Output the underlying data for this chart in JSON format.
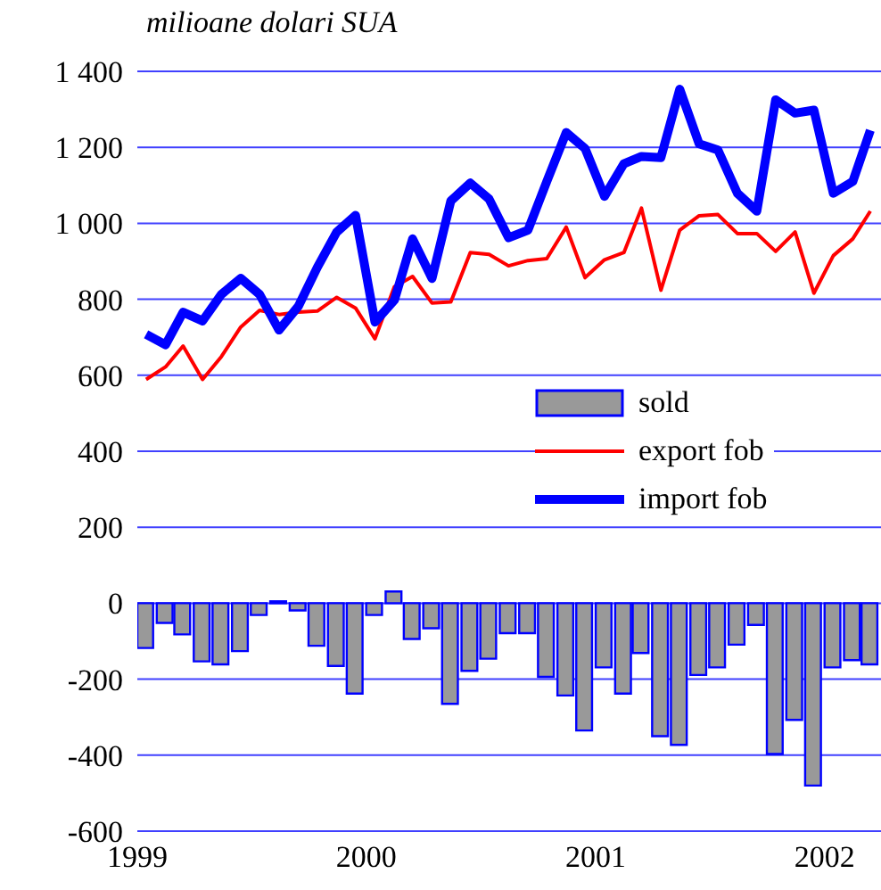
{
  "chart_data": {
    "type": "line",
    "title": "milioane dolari SUA",
    "x": [
      "1999-01-15",
      "1999-02-15",
      "1999-03-15",
      "1999-04-15",
      "1999-05-15",
      "1999-06-15",
      "1999-07-15",
      "1999-08-15",
      "1999-09-15",
      "1999-10-15",
      "1999-11-15",
      "1999-12-15",
      "2000-01-15",
      "2000-02-15",
      "2000-03-15",
      "2000-04-15",
      "2000-05-15",
      "2000-06-15",
      "2000-07-15",
      "2000-08-15",
      "2000-09-15",
      "2000-10-15",
      "2000-11-15",
      "2000-12-15",
      "2001-01-15",
      "2001-02-15",
      "2001-03-15",
      "2001-04-15",
      "2001-05-15",
      "2001-06-15",
      "2001-07-15",
      "2001-08-15",
      "2001-09-15",
      "2001-10-15",
      "2001-11-15",
      "2001-12-15",
      "2002-01-15",
      "2002-02-15",
      "2002-03-15"
    ],
    "series": [
      {
        "name": "sold",
        "type": "bar",
        "color": "#999999",
        "values": [
          -118,
          -52,
          -82,
          -153,
          -161,
          -126,
          -31,
          5,
          -19,
          -112,
          -165,
          -238,
          -31,
          31,
          -94,
          -66,
          -265,
          -178,
          -146,
          -79,
          -79,
          -194,
          -243,
          -335,
          -169,
          -238,
          -131,
          -350,
          -373,
          -189,
          -169,
          -109,
          -57,
          -397,
          -307,
          -480,
          -169,
          -150,
          -161
        ]
      },
      {
        "name": "export fob",
        "color": "#ff0000",
        "values": [
          589,
          622,
          677,
          589,
          649,
          727,
          771,
          760,
          766,
          769,
          805,
          777,
          696,
          833,
          860,
          790,
          793,
          923,
          918,
          888,
          902,
          907,
          990,
          857,
          904,
          923,
          1040,
          824,
          982,
          1020,
          1023,
          973,
          973,
          926,
          977,
          816,
          915,
          959,
          1032
        ]
      },
      {
        "name": "import fob",
        "color": "#0000ff",
        "values": [
          708,
          680,
          766,
          743,
          813,
          855,
          813,
          719,
          782,
          884,
          977,
          1021,
          740,
          798,
          959,
          855,
          1059,
          1106,
          1064,
          962,
          982,
          1110,
          1239,
          1197,
          1071,
          1157,
          1176,
          1173,
          1353,
          1209,
          1193,
          1079,
          1032,
          1325,
          1290,
          1298,
          1079,
          1110,
          1245
        ]
      }
    ],
    "xlim": [
      "1999-01-01",
      "2002-04-01"
    ],
    "xticks": [
      {
        "value": "1999-01-01",
        "label": "1999"
      },
      {
        "value": "2000-01-01",
        "label": "2000"
      },
      {
        "value": "2001-01-01",
        "label": "2001"
      },
      {
        "value": "2002-01-01",
        "label": "2002"
      }
    ],
    "ylim": [
      -600,
      1400
    ],
    "yticks": [
      {
        "value": -600,
        "label": "-600"
      },
      {
        "value": -400,
        "label": "-400"
      },
      {
        "value": -200,
        "label": "-200"
      },
      0,
      200,
      400,
      600,
      800,
      {
        "value": 1000,
        "label": "1 000"
      },
      {
        "value": 1200,
        "label": "1 200"
      },
      {
        "value": 1400,
        "label": "1 400"
      }
    ],
    "grid": "y",
    "legend": "right",
    "marker": "none",
    "line_style": "solid"
  }
}
